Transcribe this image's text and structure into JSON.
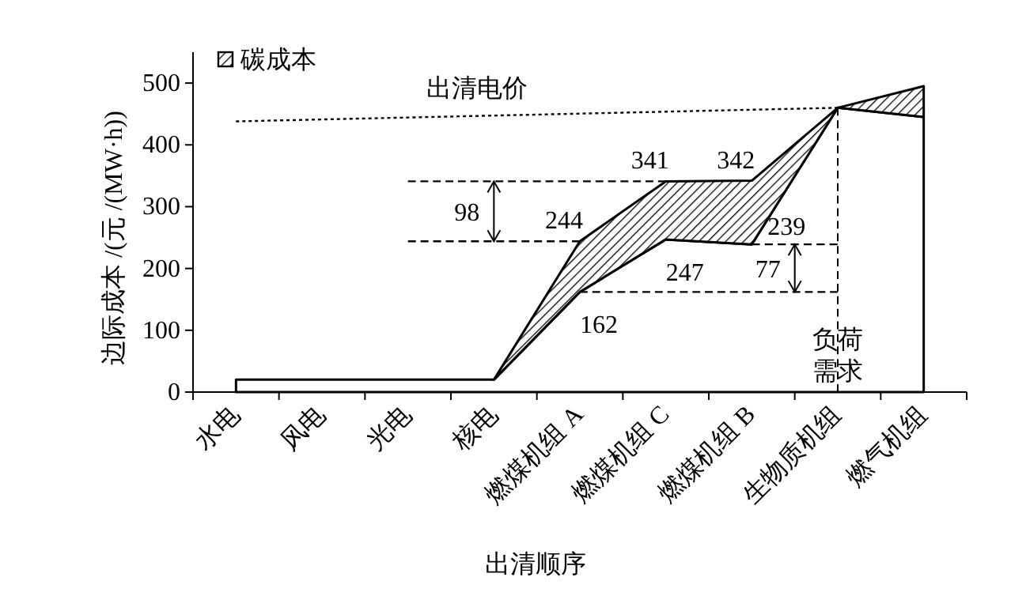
{
  "chart_data": {
    "type": "area",
    "xlabel": "出清顺序",
    "ylabel": "边际成本 /(元 /(MW·h))",
    "categories": [
      "水电",
      "风电",
      "光电",
      "核电",
      "燃煤机组 A",
      "燃煤机组 C",
      "燃煤机组 B",
      "生物质机组",
      "燃气机组"
    ],
    "ylim": [
      0,
      550
    ],
    "yticks": [
      0,
      100,
      200,
      300,
      400,
      500
    ],
    "legend": "top left",
    "series": [
      {
        "color": "#ffffff",
        "values": [
          20,
          20,
          20,
          20,
          162,
          247,
          239,
          460,
          445
        ],
        "value_labels": [
          null,
          null,
          null,
          null,
          "162",
          "247",
          "239",
          null,
          null
        ]
      },
      {
        "name": "碳成本",
        "color": "#000000",
        "values": [
          null,
          null,
          null,
          20,
          244,
          341,
          342,
          460,
          495
        ],
        "value_labels": [
          null,
          null,
          null,
          null,
          "244",
          "341",
          "342",
          null,
          null
        ]
      },
      {
        "type": "line",
        "color": "#000000",
        "line_style": "dotted",
        "x": [
          "水电",
          "生物质机组"
        ],
        "values": [
          438,
          460
        ]
      },
      {
        "type": "line",
        "color": "#000000",
        "line_style": "dashed",
        "x": [
          "光电",
          "燃煤机组 C"
        ],
        "values": [
          341,
          341
        ]
      },
      {
        "type": "line",
        "color": "#000000",
        "line_style": "dashed",
        "x": [
          "光电",
          "燃煤机组 A"
        ],
        "values": [
          244,
          244
        ]
      },
      {
        "type": "line",
        "color": "#000000",
        "line_style": "dashed",
        "x": [
          "燃煤机组 B",
          "生物质机组"
        ],
        "values": [
          239,
          239
        ]
      },
      {
        "type": "line",
        "color": "#000000",
        "line_style": "dashed",
        "x": [
          "燃煤机组 A",
          "生物质机组"
        ],
        "values": [
          162,
          162
        ]
      }
    ],
    "ref_lines": [
      {
        "axis": "x",
        "value": "生物质机组",
        "label": "负荷需求",
        "line_style": "dashed",
        "color": "#000000"
      }
    ],
    "annotations": [
      "出清电价",
      "98",
      "77"
    ]
  }
}
